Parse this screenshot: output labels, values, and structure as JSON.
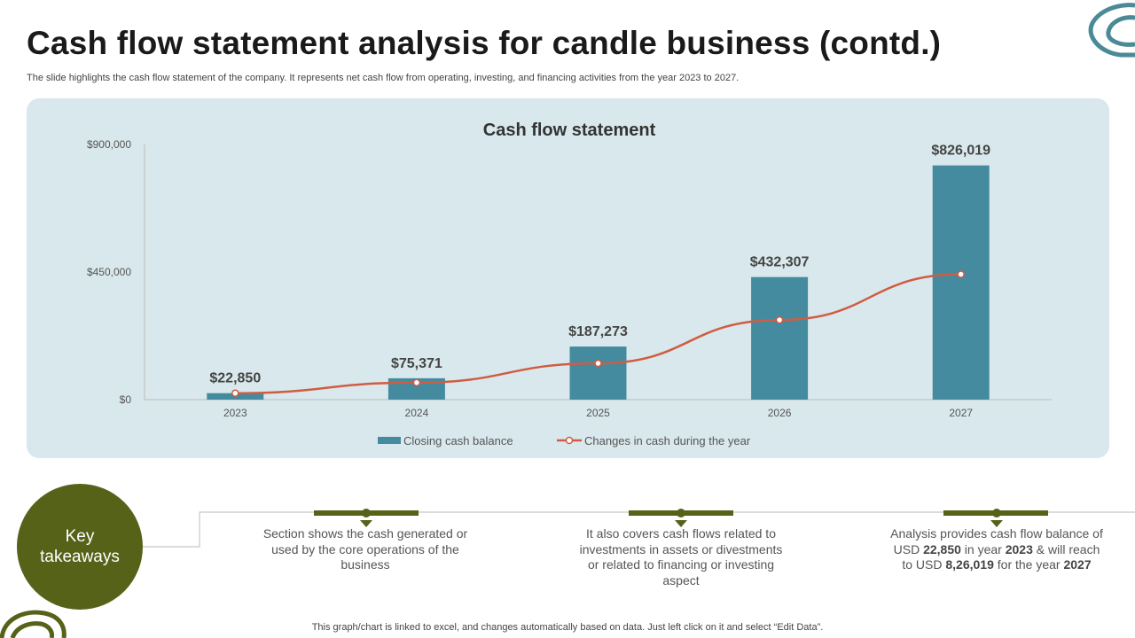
{
  "page": {
    "title": "Cash flow statement analysis for candle business (contd.)",
    "subtitle": "The slide highlights the cash flow statement of the company. It represents net cash flow from operating, investing, and financing activities from the year 2023 to 2027.",
    "footer": "This graph/chart is linked to excel,  and changes automatically based on data. Just left click on it and select “Edit Data”."
  },
  "colors": {
    "bar": "#458ba0",
    "line": "#d05c42",
    "panel": "#d9e8ec",
    "accent": "#556218"
  },
  "chart_data": {
    "type": "bar",
    "title": "Cash flow statement",
    "categories": [
      "2023",
      "2024",
      "2025",
      "2026",
      "2027"
    ],
    "y_ticks": [
      "$0",
      "$450,000",
      "$900,000"
    ],
    "ylim": [
      0,
      900000
    ],
    "series": [
      {
        "name": "Closing cash balance",
        "type": "bar",
        "values": [
          22850,
          75371,
          187273,
          432307,
          826019
        ],
        "labels": [
          "$22,850",
          "$75,371",
          "$187,273",
          "$432,307",
          "$826,019"
        ]
      },
      {
        "name": "Changes in cash during the year",
        "type": "line",
        "values": [
          22850,
          60000,
          128000,
          281000,
          442000
        ]
      }
    ],
    "legend_position": "bottom",
    "grid": false
  },
  "takeaways": {
    "heading_line1": "Key",
    "heading_line2": "takeaways",
    "items": [
      {
        "text": "Section shows the cash generated or used by the core operations of the business"
      },
      {
        "text": "It also covers cash flows related to investments in assets or divestments or related to financing or investing aspect"
      },
      {
        "part1": "Analysis provides cash flow balance of USD ",
        "bold1": "22,850",
        "part2": " in year ",
        "bold2": "2023",
        "part3": " & will reach to USD ",
        "bold3": "8,26,019",
        "part4": " for the year ",
        "bold4": "2027"
      }
    ]
  }
}
